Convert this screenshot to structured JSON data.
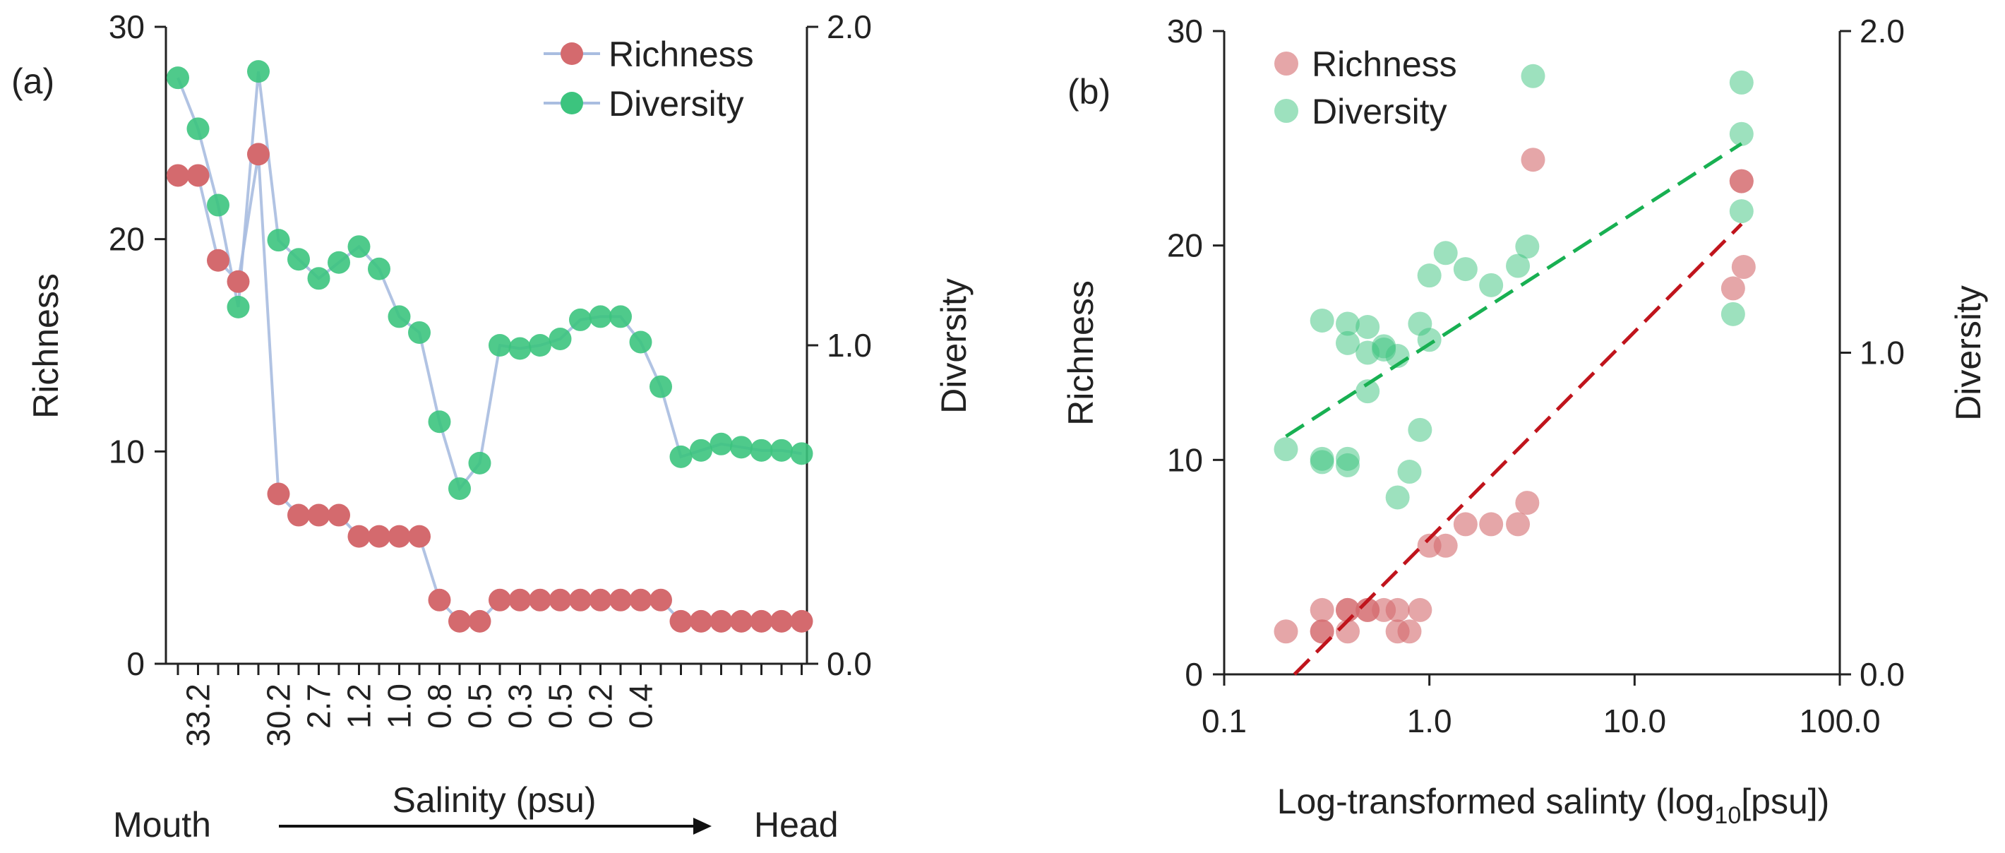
{
  "chart_data": [
    {
      "type": "line",
      "panel_label": "(a)",
      "xlabel": "Salinity (psu)",
      "ylabel_left": "Richness",
      "ylabel_right": "Diversity",
      "ylim_left": [
        0,
        30
      ],
      "ylim_right": [
        0.0,
        2.0
      ],
      "yticks_left": [
        "0",
        "10",
        "20",
        "30"
      ],
      "yticks_right": [
        "0.0",
        "1.0",
        "2.0"
      ],
      "x_tick_labels": [
        "33.2",
        "30.2",
        "2.7",
        "1.2",
        "1.0",
        "0.8",
        "0.5",
        "0.3",
        "0.5",
        "0.2",
        "0.4"
      ],
      "x_tick_label_positions": [
        1,
        5,
        7,
        9,
        11,
        13,
        15,
        17,
        19,
        21,
        23
      ],
      "mouth_label": "Mouth",
      "head_label": "Head",
      "legend": [
        "Richness",
        "Diversity"
      ],
      "colors": {
        "richness": "#d46a6e",
        "diversity": "#3cc47e",
        "line": "#a9bde0",
        "arrow": "#111111"
      },
      "series": [
        {
          "name": "Richness",
          "axis": "left",
          "values": [
            23,
            23,
            19,
            18,
            24,
            8,
            7,
            7,
            7,
            6,
            6,
            6,
            6,
            3,
            2,
            2,
            3,
            3,
            3,
            3,
            3,
            3,
            3,
            3,
            3,
            2,
            2,
            2,
            2,
            2,
            2,
            2
          ]
        },
        {
          "name": "Diversity",
          "axis": "right",
          "values": [
            1.84,
            1.68,
            1.44,
            1.12,
            1.86,
            1.33,
            1.27,
            1.21,
            1.26,
            1.31,
            1.24,
            1.09,
            1.04,
            0.76,
            0.55,
            0.63,
            1.0,
            0.99,
            1.0,
            1.02,
            1.08,
            1.09,
            1.09,
            1.01,
            0.87,
            0.65,
            0.67,
            0.69,
            0.68,
            0.67,
            0.67,
            0.66
          ]
        }
      ]
    },
    {
      "type": "scatter",
      "panel_label": "(b)",
      "xlabel_prefix": "Log-transformed salinty (log",
      "xlabel_sub": "10",
      "xlabel_suffix": "[psu])",
      "ylabel_left": "Richness",
      "ylabel_right": "Diversity",
      "xscale": "log",
      "xlim": [
        0.1,
        100.0
      ],
      "xticks": [
        "0.1",
        "1.0",
        "10.0",
        "100.0"
      ],
      "ylim_left": [
        0,
        30
      ],
      "ylim_right": [
        0.0,
        2.0
      ],
      "yticks_left": [
        "0",
        "10",
        "20",
        "30"
      ],
      "yticks_right": [
        "0.0",
        "1.0",
        "2.0"
      ],
      "legend": [
        "Richness",
        "Diversity"
      ],
      "colors": {
        "richness": "#d46a6e",
        "diversity": "#3cc47e",
        "richness_fit": "#c0141c",
        "diversity_fit": "#18b052"
      },
      "richness_points": [
        [
          0.2,
          2
        ],
        [
          0.3,
          2
        ],
        [
          0.3,
          2
        ],
        [
          0.3,
          3
        ],
        [
          0.4,
          2
        ],
        [
          0.4,
          3
        ],
        [
          0.4,
          3
        ],
        [
          0.5,
          3
        ],
        [
          0.5,
          3
        ],
        [
          0.6,
          3
        ],
        [
          0.7,
          3
        ],
        [
          0.7,
          2
        ],
        [
          0.8,
          2
        ],
        [
          0.9,
          3
        ],
        [
          1.0,
          6
        ],
        [
          1.2,
          6
        ],
        [
          1.5,
          7
        ],
        [
          2.0,
          7
        ],
        [
          2.7,
          7
        ],
        [
          3.0,
          8
        ],
        [
          3.2,
          24
        ],
        [
          30.2,
          18
        ],
        [
          33.2,
          23
        ],
        [
          33.2,
          23
        ],
        [
          34.0,
          19
        ]
      ],
      "diversity_points": [
        [
          0.2,
          0.7
        ],
        [
          0.3,
          1.1
        ],
        [
          0.3,
          0.67
        ],
        [
          0.3,
          0.66
        ],
        [
          0.4,
          0.67
        ],
        [
          0.4,
          0.65
        ],
        [
          0.4,
          1.09
        ],
        [
          0.4,
          1.03
        ],
        [
          0.5,
          1.0
        ],
        [
          0.5,
          0.88
        ],
        [
          0.5,
          1.08
        ],
        [
          0.6,
          1.02
        ],
        [
          0.6,
          1.01
        ],
        [
          0.7,
          0.99
        ],
        [
          0.7,
          0.55
        ],
        [
          0.8,
          0.63
        ],
        [
          0.9,
          0.76
        ],
        [
          0.9,
          1.09
        ],
        [
          1.0,
          1.04
        ],
        [
          1.0,
          1.24
        ],
        [
          1.2,
          1.31
        ],
        [
          1.5,
          1.26
        ],
        [
          2.0,
          1.21
        ],
        [
          2.7,
          1.27
        ],
        [
          3.0,
          1.33
        ],
        [
          3.2,
          1.86
        ],
        [
          30.2,
          1.12
        ],
        [
          33.2,
          1.84
        ],
        [
          33.2,
          1.68
        ],
        [
          33.2,
          1.44
        ]
      ],
      "richness_fit": {
        "x_range": [
          0.22,
          33.2
        ],
        "y_range": [
          0,
          21
        ]
      },
      "diversity_fit": {
        "x_range": [
          0.2,
          33.2
        ],
        "y_range": [
          0.74,
          1.65
        ]
      }
    }
  ]
}
